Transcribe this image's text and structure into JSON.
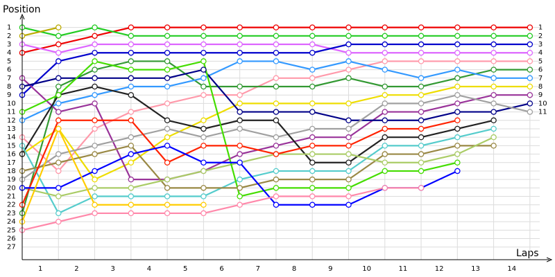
{
  "chart_data": {
    "type": "line",
    "y_axis_label": "Position",
    "x_axis_label": "Laps",
    "x": [
      0,
      1,
      2,
      3,
      4,
      5,
      6,
      7,
      8,
      9,
      10,
      11,
      12,
      13,
      14
    ],
    "xlim": [
      0,
      14.5
    ],
    "xticks": [
      {
        "value": 0.5,
        "label": "1"
      },
      {
        "value": 1.5,
        "label": "2"
      },
      {
        "value": 2.5,
        "label": "3"
      },
      {
        "value": 3.5,
        "label": "4"
      },
      {
        "value": 4.5,
        "label": "5"
      },
      {
        "value": 5.5,
        "label": "6"
      },
      {
        "value": 6.5,
        "label": "7"
      },
      {
        "value": 7.5,
        "label": "8"
      },
      {
        "value": 8.5,
        "label": "9"
      },
      {
        "value": 9.5,
        "label": "10"
      },
      {
        "value": 10.5,
        "label": "11"
      },
      {
        "value": 11.5,
        "label": "12"
      },
      {
        "value": 12.5,
        "label": "13"
      },
      {
        "value": 13.5,
        "label": "14"
      }
    ],
    "ylim": [
      28.5,
      -0.2
    ],
    "yticks": [
      1,
      2,
      3,
      4,
      5,
      6,
      7,
      8,
      9,
      10,
      11,
      12,
      13,
      14,
      15,
      16,
      17,
      18,
      19,
      20,
      21,
      22,
      23,
      24,
      25,
      26,
      27
    ],
    "grid": true,
    "series": [
      {
        "color": "#ee0000",
        "values": [
          4,
          3,
          2,
          1,
          1,
          1,
          1,
          1,
          1,
          1,
          1,
          1,
          1,
          1,
          1
        ]
      },
      {
        "color": "#22cc22",
        "values": [
          1,
          2,
          1,
          2,
          2,
          2,
          2,
          2,
          2,
          2,
          2,
          2,
          2,
          2,
          2
        ]
      },
      {
        "color": "#dd66ff",
        "values": [
          3,
          4,
          3,
          3,
          3,
          3,
          3,
          3,
          3,
          4,
          4,
          4,
          4,
          4,
          4
        ]
      },
      {
        "color": "#0000cc",
        "values": [
          9,
          5,
          4,
          4,
          4,
          4,
          4,
          4,
          4,
          3,
          3,
          3,
          3,
          3,
          3
        ]
      },
      {
        "color": "#ff99aa",
        "values": [
          14,
          18,
          13,
          11,
          10,
          9,
          9,
          7,
          7,
          6,
          5,
          5,
          5,
          5,
          5
        ]
      },
      {
        "color": "#339933",
        "values": [
          23,
          8,
          6,
          5,
          5,
          8,
          8,
          8,
          8,
          7,
          8,
          8,
          7,
          6,
          6
        ]
      },
      {
        "color": "#3399ff",
        "values": [
          12,
          10,
          9,
          8,
          8,
          7,
          5,
          5,
          6,
          5,
          6,
          7,
          6,
          7,
          7
        ]
      },
      {
        "color": "#eedd00",
        "values": [
          16,
          13,
          19,
          17,
          14,
          12,
          10,
          10,
          10,
          10,
          9,
          9,
          8,
          8,
          8
        ]
      },
      {
        "color": "#993399",
        "values": [
          7,
          11,
          10,
          19,
          19,
          18,
          16,
          15,
          14,
          14,
          11,
          11,
          10,
          9,
          9
        ]
      },
      {
        "color": "#000088",
        "values": [
          8,
          7,
          7,
          7,
          7,
          6,
          11,
          11,
          11,
          12,
          12,
          12,
          11,
          11,
          10
        ]
      },
      {
        "color": "#a0a0a0",
        "values": [
          19,
          16,
          15,
          14,
          13,
          14,
          13,
          14,
          13,
          13,
          10,
          10,
          9,
          10,
          11
        ]
      },
      {
        "color": "#222222",
        "values": [
          16,
          9,
          8,
          9,
          12,
          13,
          12,
          12,
          17,
          17,
          14,
          14,
          13,
          12,
          null
        ]
      },
      {
        "color": "#55cccc",
        "values": [
          15,
          23,
          21,
          21,
          21,
          21,
          19,
          18,
          18,
          18,
          15,
          15,
          14,
          13,
          null
        ]
      },
      {
        "color": "#998844",
        "values": [
          18,
          17,
          16,
          15,
          20,
          20,
          20,
          19,
          19,
          19,
          16,
          16,
          15,
          15,
          null
        ]
      },
      {
        "color": "#aacc66",
        "values": [
          20,
          21,
          20,
          20,
          19,
          18,
          17,
          16,
          16,
          16,
          17,
          17,
          16,
          14,
          null
        ]
      },
      {
        "color": "#44dd00",
        "values": [
          11,
          9,
          5,
          6,
          6,
          5,
          21,
          20,
          20,
          20,
          18,
          18,
          17,
          null,
          null
        ]
      },
      {
        "color": "#ff2200",
        "values": [
          22,
          12,
          12,
          12,
          17,
          15,
          15,
          16,
          15,
          15,
          13,
          13,
          12,
          null,
          null
        ]
      },
      {
        "color": "#0000ff",
        "values": [
          20,
          20,
          18,
          16,
          15,
          17,
          17,
          22,
          22,
          22,
          20,
          20,
          18,
          null,
          null
        ]
      },
      {
        "color": "#ffcc00",
        "values": [
          24,
          13,
          22,
          22,
          22,
          22,
          null,
          null,
          null,
          null,
          null,
          null,
          null,
          null,
          null
        ]
      },
      {
        "color": "#ff88aa",
        "values": [
          25,
          24,
          23,
          23,
          23,
          23,
          22,
          21,
          21,
          21,
          20,
          20,
          null,
          null,
          null
        ]
      },
      {
        "color": "#bbaa00",
        "values": [
          2,
          1,
          null,
          null,
          null,
          null,
          null,
          null,
          null,
          null,
          null,
          null,
          null,
          null,
          null
        ]
      }
    ]
  }
}
